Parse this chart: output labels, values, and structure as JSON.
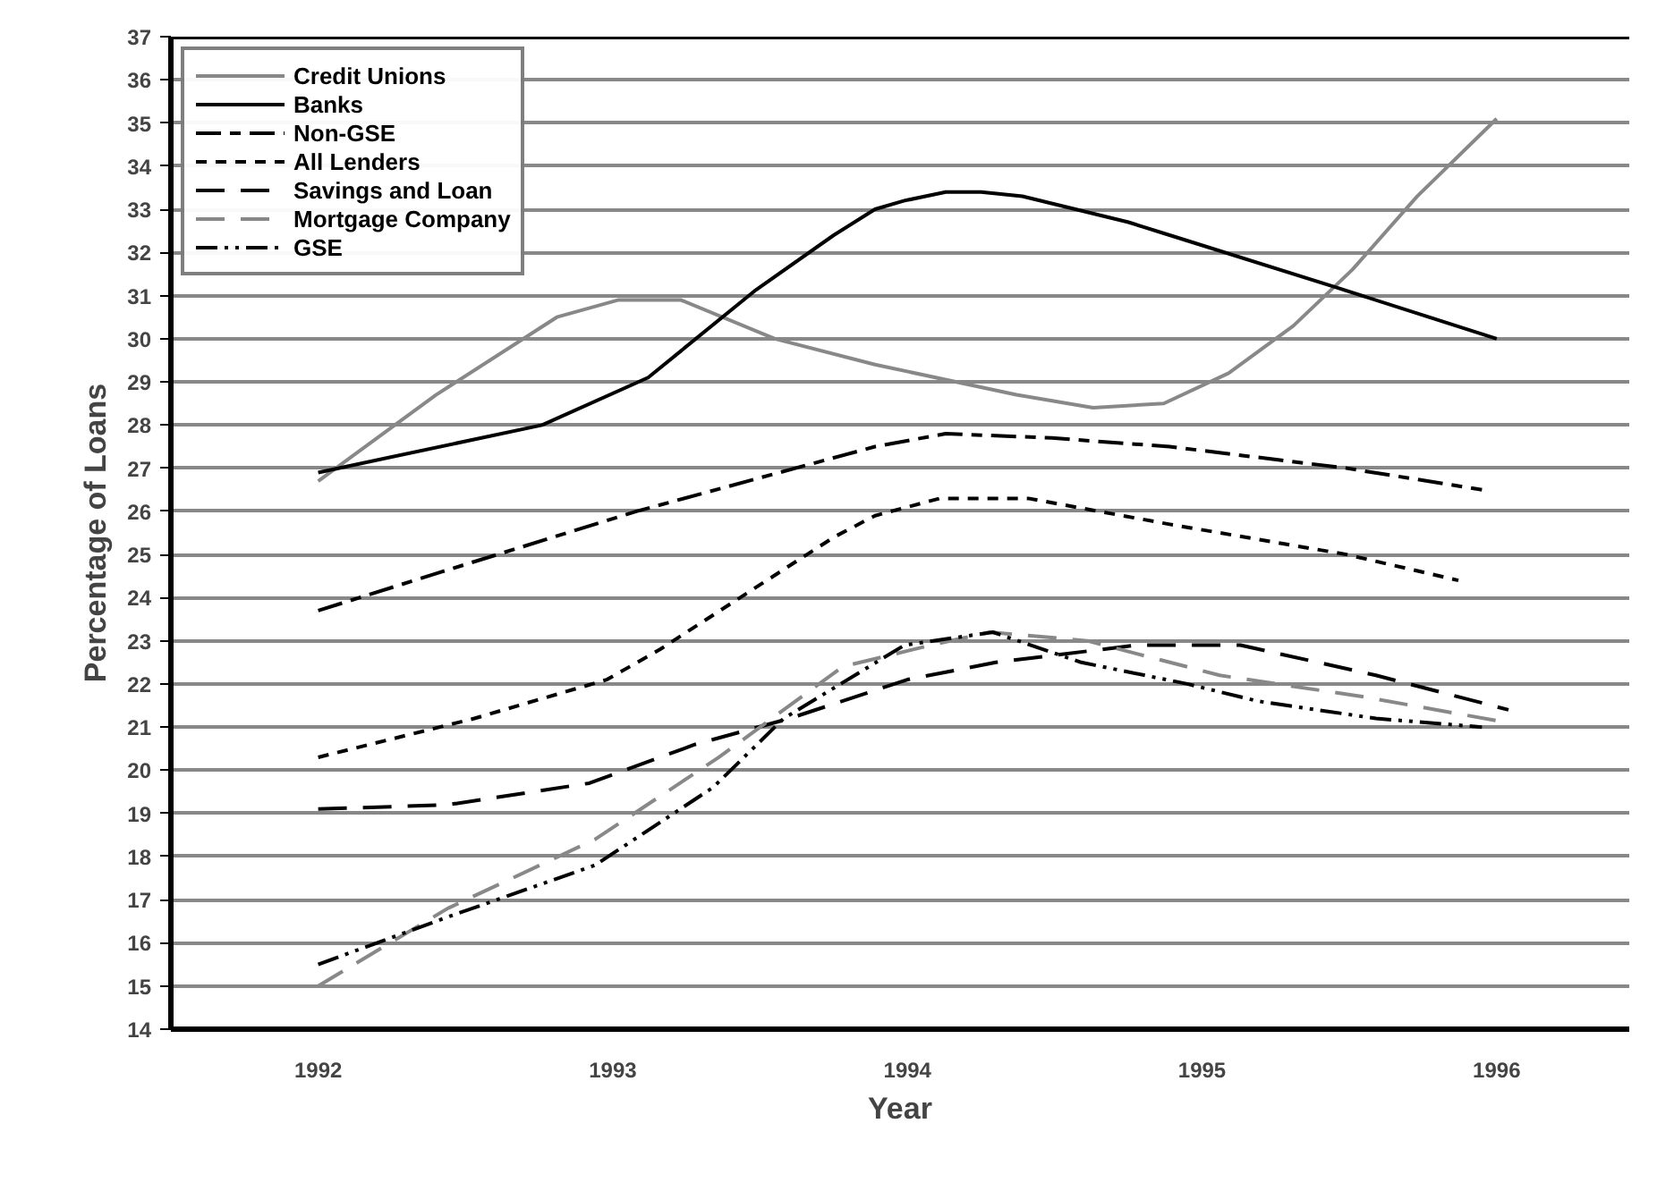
{
  "chart_data": {
    "type": "line",
    "xlabel": "Year",
    "ylabel": "Percentage of Loans",
    "xlim": [
      1991.5,
      1996.45
    ],
    "xticks": [
      1992,
      1993,
      1994,
      1995,
      1996
    ],
    "ylim": [
      14,
      37
    ],
    "yticks": [
      14,
      15,
      16,
      17,
      18,
      19,
      20,
      21,
      22,
      23,
      24,
      25,
      26,
      27,
      28,
      29,
      30,
      31,
      32,
      33,
      34,
      35,
      36,
      37
    ],
    "grid": "y",
    "legend": "top left",
    "series": [
      {
        "name": "Credit Unions",
        "color": "#888888",
        "line_style": "solid",
        "x": [
          1992.0,
          1992.4,
          1992.81,
          1993.02,
          1993.23,
          1993.55,
          1993.89,
          1994.37,
          1994.63,
          1994.87,
          1995.09,
          1995.31,
          1995.51,
          1995.73,
          1996.0
        ],
        "values": [
          26.7,
          28.7,
          30.5,
          30.9,
          30.9,
          30.0,
          29.4,
          28.7,
          28.4,
          28.5,
          29.2,
          30.3,
          31.6,
          33.3,
          35.1
        ]
      },
      {
        "name": "Banks",
        "color": "#000000",
        "line_style": "solid",
        "x": [
          1992.0,
          1992.76,
          1993.12,
          1993.48,
          1993.75,
          1993.89,
          1993.99,
          1994.13,
          1994.25,
          1994.39,
          1994.75,
          1994.89,
          1995.45,
          1995.77,
          1996.0
        ],
        "values": [
          26.9,
          28.0,
          29.1,
          31.1,
          32.4,
          33.0,
          33.2,
          33.4,
          33.4,
          33.3,
          32.7,
          32.4,
          31.2,
          30.5,
          30.0
        ]
      },
      {
        "name": "Non-GSE",
        "color": "#000000",
        "line_style": "dashdot",
        "x": [
          1992.0,
          1992.42,
          1993.08,
          1993.89,
          1994.13,
          1994.49,
          1994.89,
          1995.49,
          1995.95
        ],
        "values": [
          23.7,
          24.6,
          26.0,
          27.5,
          27.8,
          27.7,
          27.5,
          27.0,
          26.5
        ]
      },
      {
        "name": "All Lenders",
        "color": "#000000",
        "line_style": "dashed",
        "x": [
          1992.0,
          1992.53,
          1992.98,
          1993.16,
          1993.5,
          1993.75,
          1993.89,
          1994.11,
          1994.41,
          1994.89,
          1995.49,
          1995.87
        ],
        "values": [
          20.3,
          21.2,
          22.1,
          22.8,
          24.3,
          25.4,
          25.9,
          26.3,
          26.3,
          25.7,
          25.0,
          24.4
        ]
      },
      {
        "name": "Savings and Loan",
        "color": "#000000",
        "line_style": "longdash",
        "x": [
          1992.0,
          1992.44,
          1992.92,
          1993.28,
          1993.6,
          1994.0,
          1994.3,
          1994.78,
          1994.95,
          1995.13,
          1995.59,
          1996.04
        ],
        "values": [
          19.1,
          19.2,
          19.7,
          20.6,
          21.2,
          22.1,
          22.5,
          22.9,
          22.9,
          22.9,
          22.2,
          21.4
        ]
      },
      {
        "name": "Mortgage Company",
        "color": "#888888",
        "line_style": "longdash",
        "x": [
          1992.0,
          1992.44,
          1992.94,
          1993.36,
          1993.78,
          1994.08,
          1994.28,
          1994.61,
          1995.06,
          1995.55,
          1996.04
        ],
        "values": [
          15.0,
          16.8,
          18.4,
          20.3,
          22.4,
          22.9,
          23.2,
          23.0,
          22.2,
          21.7,
          21.1
        ]
      },
      {
        "name": "GSE",
        "color": "#000000",
        "line_style": "dashdotdot",
        "x": [
          1992.0,
          1992.44,
          1992.94,
          1993.34,
          1993.58,
          1993.99,
          1994.29,
          1994.59,
          1994.95,
          1995.19,
          1995.59,
          1995.95
        ],
        "values": [
          15.5,
          16.6,
          17.8,
          19.6,
          21.2,
          22.9,
          23.2,
          22.5,
          22.0,
          21.6,
          21.2,
          21.0
        ]
      }
    ]
  }
}
